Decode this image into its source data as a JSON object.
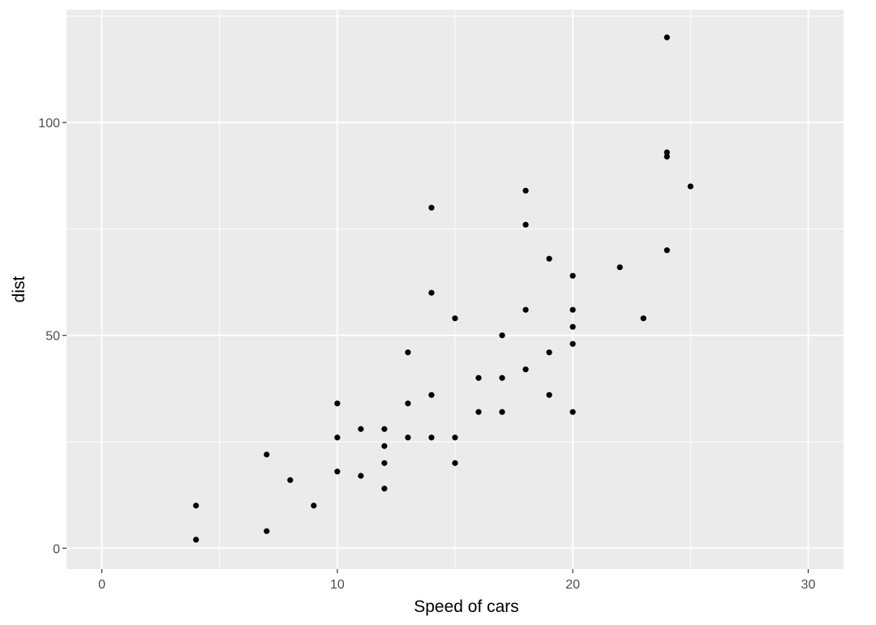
{
  "chart_data": {
    "type": "scatter",
    "xlabel": "Speed of cars",
    "ylabel": "dist",
    "xlim": [
      -1.5,
      31.5
    ],
    "ylim": [
      -4.9,
      126.5
    ],
    "x_ticks": [
      0,
      10,
      20,
      30
    ],
    "x_tick_labels": [
      "0",
      "10",
      "20",
      "30"
    ],
    "y_ticks": [
      0,
      50,
      100
    ],
    "y_tick_labels": [
      "0",
      "50",
      "100"
    ],
    "grid": true,
    "legend": "none",
    "point_color": "#000000",
    "panel_background": "#ebebeb",
    "grid_color": "#ffffff",
    "points": [
      {
        "x": 4,
        "y": 2
      },
      {
        "x": 4,
        "y": 10
      },
      {
        "x": 7,
        "y": 4
      },
      {
        "x": 7,
        "y": 22
      },
      {
        "x": 8,
        "y": 16
      },
      {
        "x": 9,
        "y": 10
      },
      {
        "x": 10,
        "y": 18
      },
      {
        "x": 10,
        "y": 26
      },
      {
        "x": 10,
        "y": 34
      },
      {
        "x": 11,
        "y": 17
      },
      {
        "x": 11,
        "y": 28
      },
      {
        "x": 12,
        "y": 14
      },
      {
        "x": 12,
        "y": 20
      },
      {
        "x": 12,
        "y": 24
      },
      {
        "x": 12,
        "y": 28
      },
      {
        "x": 13,
        "y": 26
      },
      {
        "x": 13,
        "y": 34
      },
      {
        "x": 13,
        "y": 46
      },
      {
        "x": 14,
        "y": 26
      },
      {
        "x": 14,
        "y": 36
      },
      {
        "x": 14,
        "y": 60
      },
      {
        "x": 14,
        "y": 80
      },
      {
        "x": 15,
        "y": 20
      },
      {
        "x": 15,
        "y": 26
      },
      {
        "x": 15,
        "y": 54
      },
      {
        "x": 16,
        "y": 32
      },
      {
        "x": 16,
        "y": 40
      },
      {
        "x": 17,
        "y": 32
      },
      {
        "x": 17,
        "y": 40
      },
      {
        "x": 17,
        "y": 50
      },
      {
        "x": 18,
        "y": 42
      },
      {
        "x": 18,
        "y": 56
      },
      {
        "x": 18,
        "y": 76
      },
      {
        "x": 18,
        "y": 84
      },
      {
        "x": 19,
        "y": 36
      },
      {
        "x": 19,
        "y": 46
      },
      {
        "x": 19,
        "y": 68
      },
      {
        "x": 20,
        "y": 32
      },
      {
        "x": 20,
        "y": 48
      },
      {
        "x": 20,
        "y": 52
      },
      {
        "x": 20,
        "y": 56
      },
      {
        "x": 20,
        "y": 64
      },
      {
        "x": 22,
        "y": 66
      },
      {
        "x": 23,
        "y": 54
      },
      {
        "x": 24,
        "y": 70
      },
      {
        "x": 24,
        "y": 92
      },
      {
        "x": 24,
        "y": 93
      },
      {
        "x": 24,
        "y": 120
      },
      {
        "x": 25,
        "y": 85
      }
    ]
  }
}
